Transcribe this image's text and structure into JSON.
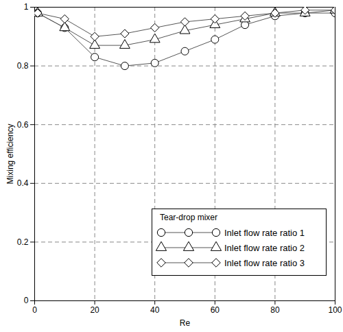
{
  "chart_data": {
    "type": "line",
    "x_label": "Re",
    "y_label": "Mixing efficiency",
    "legend_title": "Tear-drop mixer",
    "x": [
      1,
      10,
      20,
      30,
      40,
      50,
      60,
      70,
      80,
      90,
      100
    ],
    "series": [
      {
        "name": "Inlet flow rate ratio 1",
        "color": "#555555",
        "marker": "circle",
        "values": [
          0.98,
          0.93,
          0.83,
          0.8,
          0.81,
          0.85,
          0.89,
          0.94,
          0.97,
          0.98,
          0.98
        ]
      },
      {
        "name": "Inlet flow rate ratio 2",
        "color": "#555555",
        "marker": "triangle",
        "values": [
          0.98,
          0.93,
          0.87,
          0.87,
          0.89,
          0.92,
          0.94,
          0.96,
          0.98,
          0.98,
          0.99
        ]
      },
      {
        "name": "Inlet flow rate ratio 3",
        "color": "#555555",
        "marker": "diamond",
        "values": [
          0.98,
          0.96,
          0.9,
          0.91,
          0.93,
          0.95,
          0.96,
          0.97,
          0.98,
          0.99,
          0.99
        ]
      }
    ],
    "xlim": [
      0,
      100
    ],
    "xticks": [
      0,
      20,
      40,
      60,
      80,
      100
    ],
    "ylim": [
      0,
      1
    ],
    "yticks": [
      0,
      0.2,
      0.4,
      0.6,
      0.8,
      1
    ],
    "grid": true,
    "legend": "lower right"
  }
}
